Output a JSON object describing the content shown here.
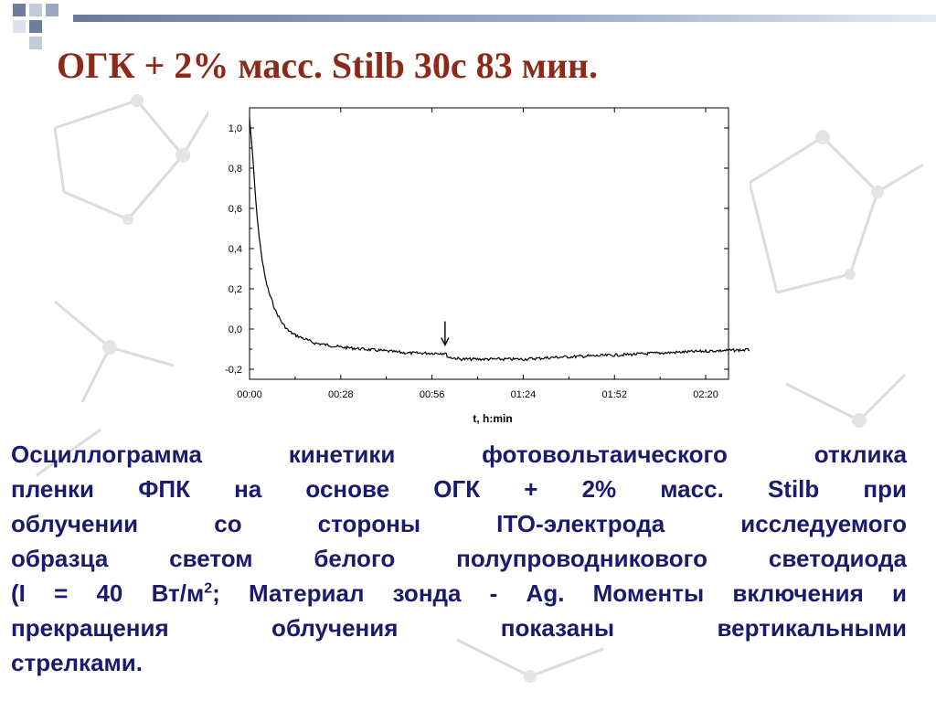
{
  "title": "ОГК + 2% масс. Stilb 30с 83 мин.",
  "chart_data": {
    "type": "line",
    "xlabel": "t, h:min",
    "ylabel": "",
    "xlim_seconds": [
      0,
      8820
    ],
    "ylim": [
      -0.25,
      1.1
    ],
    "x_ticks": [
      {
        "label": "00:00",
        "minutes": 0
      },
      {
        "label": "00:28",
        "minutes": 28
      },
      {
        "label": "00:56",
        "minutes": 56
      },
      {
        "label": "01:24",
        "minutes": 84
      },
      {
        "label": "01:52",
        "minutes": 112
      },
      {
        "label": "02:20",
        "minutes": 140
      }
    ],
    "y_ticks": [
      {
        "label": "1,0",
        "value": 1.0
      },
      {
        "label": "0,8",
        "value": 0.8
      },
      {
        "label": "0,6",
        "value": 0.6
      },
      {
        "label": "0,4",
        "value": 0.4
      },
      {
        "label": "0,2",
        "value": 0.2
      },
      {
        "label": "0,0",
        "value": 0.0
      },
      {
        "label": "-0,2",
        "value": -0.2
      }
    ],
    "grid": false,
    "legend": "none",
    "series": [
      {
        "x": [
          "00:00",
          "00:01",
          "00:02",
          "00:03",
          "00:04",
          "00:05",
          "00:06",
          "00:08",
          "00:10",
          "00:12",
          "00:14",
          "00:17",
          "00:20",
          "00:24",
          "00:28",
          "00:35",
          "00:42",
          "00:49",
          "00:56",
          "01:00",
          "01:01",
          "01:05",
          "01:10",
          "01:15",
          "01:24",
          "01:35",
          "01:52",
          "02:05",
          "02:20",
          "02:40"
        ],
        "y": [
          1.05,
          0.85,
          0.62,
          0.45,
          0.33,
          0.24,
          0.18,
          0.09,
          0.03,
          -0.01,
          -0.03,
          -0.05,
          -0.07,
          -0.08,
          -0.09,
          -0.1,
          -0.11,
          -0.12,
          -0.12,
          -0.12,
          -0.14,
          -0.15,
          -0.15,
          -0.15,
          -0.15,
          -0.14,
          -0.13,
          -0.12,
          -0.11,
          -0.1
        ]
      }
    ],
    "annotations": [
      {
        "type": "arrow-down",
        "x": "01:00"
      }
    ],
    "colors": {
      "line": "#000000",
      "arrow": "#000000"
    }
  },
  "caption": {
    "lines": [
      "Осциллограмма кинетики фотовольтаического отклика",
      "пленки ФПК на основе ОГК + 2% масс. Stilb при",
      "облучении со стороны ITO-электрода исследуемого",
      "образца светом белого полупроводникового светодиода",
      "(I = 40 Вт/м",
      "; Материал зонда - Ag. Моменты включения и",
      "прекращения облучения показаны вертикальными",
      "стрелками."
    ],
    "superscript": "2"
  },
  "colors": {
    "title": "#8b2a1a",
    "caption": "#1a1a6e",
    "title_bar": "#6a7c9c",
    "corner_squares": "#6e7f9e",
    "background_art": "#d9d9d9"
  }
}
